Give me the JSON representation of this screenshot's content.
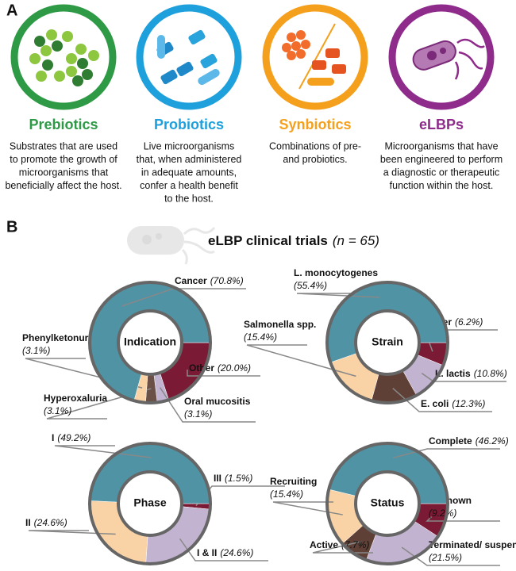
{
  "panel_a": {
    "label": "A",
    "items": [
      {
        "title": "Prebiotics",
        "color": "#2e9a46",
        "description": [
          "Substrates that are used",
          "to promote the growth of",
          "microorganisms that",
          "beneficially affect the host."
        ]
      },
      {
        "title": "Probiotics",
        "color": "#1ea0dc",
        "description": [
          "Live microorganisms",
          "that, when administered",
          "in adequate amounts,",
          "confer a health benefit",
          "to the host."
        ]
      },
      {
        "title": "Synbiotics",
        "color": "#f5a01c",
        "description": [
          "Combinations of pre-",
          "and probiotics."
        ]
      },
      {
        "title": "eLBPs",
        "color": "#8e2b8b",
        "description": [
          "Microorganisms that have",
          "been engineered to perform",
          "a diagnostic or therapeutic",
          "function within the host."
        ]
      }
    ]
  },
  "panel_b": {
    "label": "B",
    "title": "eLBP clinical trials",
    "subtitle": "(n = 65)"
  },
  "chart_data": [
    {
      "type": "donut",
      "title": "Indication",
      "categories": [
        "Other",
        "Oral mucositis",
        "Hyperoxaluria",
        "Phenylketonuria",
        "Cancer"
      ],
      "values": [
        20.0,
        3.1,
        3.1,
        3.1,
        70.8
      ],
      "value_labels": [
        "(20.0%)",
        "(3.1%)",
        "(3.1%)",
        "(3.1%)",
        "(70.8%)"
      ],
      "colors": [
        "#7b1a35",
        "#c2b3d0",
        "#6b5048",
        "#f9d3a5",
        "#4f93a5"
      ]
    },
    {
      "type": "donut",
      "title": "Strain",
      "categories": [
        "Other",
        "L. lactis",
        "E. coli",
        "Salmonella spp.",
        "L. monocytogenes"
      ],
      "values": [
        6.2,
        10.8,
        12.3,
        15.4,
        55.4
      ],
      "value_labels": [
        "(6.2%)",
        "(10.8%)",
        "(12.3%)",
        "(15.4%)",
        "(55.4%)"
      ],
      "colors": [
        "#7b1a35",
        "#c2b3d0",
        "#5e4037",
        "#f9d3a5",
        "#4f93a5"
      ]
    },
    {
      "type": "donut",
      "title": "Phase",
      "categories": [
        "III",
        "I & II",
        "II",
        "I"
      ],
      "values": [
        1.5,
        24.6,
        24.6,
        49.2
      ],
      "value_labels": [
        "(1.5%)",
        "(24.6%)",
        "(24.6%)",
        "(49.2%)"
      ],
      "colors": [
        "#7b1a35",
        "#c2b3d0",
        "#f9d3a5",
        "#4f93a5"
      ]
    },
    {
      "type": "donut",
      "title": "Status",
      "categories": [
        "Unknown",
        "Terminated/ suspended",
        "Active",
        "Recruiting",
        "Complete"
      ],
      "values": [
        9.2,
        21.5,
        7.7,
        15.4,
        46.2
      ],
      "value_labels": [
        "(9.2%)",
        "(21.5%)",
        "(7.7%)",
        "(15.4%)",
        "(46.2%)"
      ],
      "colors": [
        "#7b1a35",
        "#c2b3d0",
        "#5e4037",
        "#f9d3a5",
        "#4f93a5"
      ]
    }
  ]
}
